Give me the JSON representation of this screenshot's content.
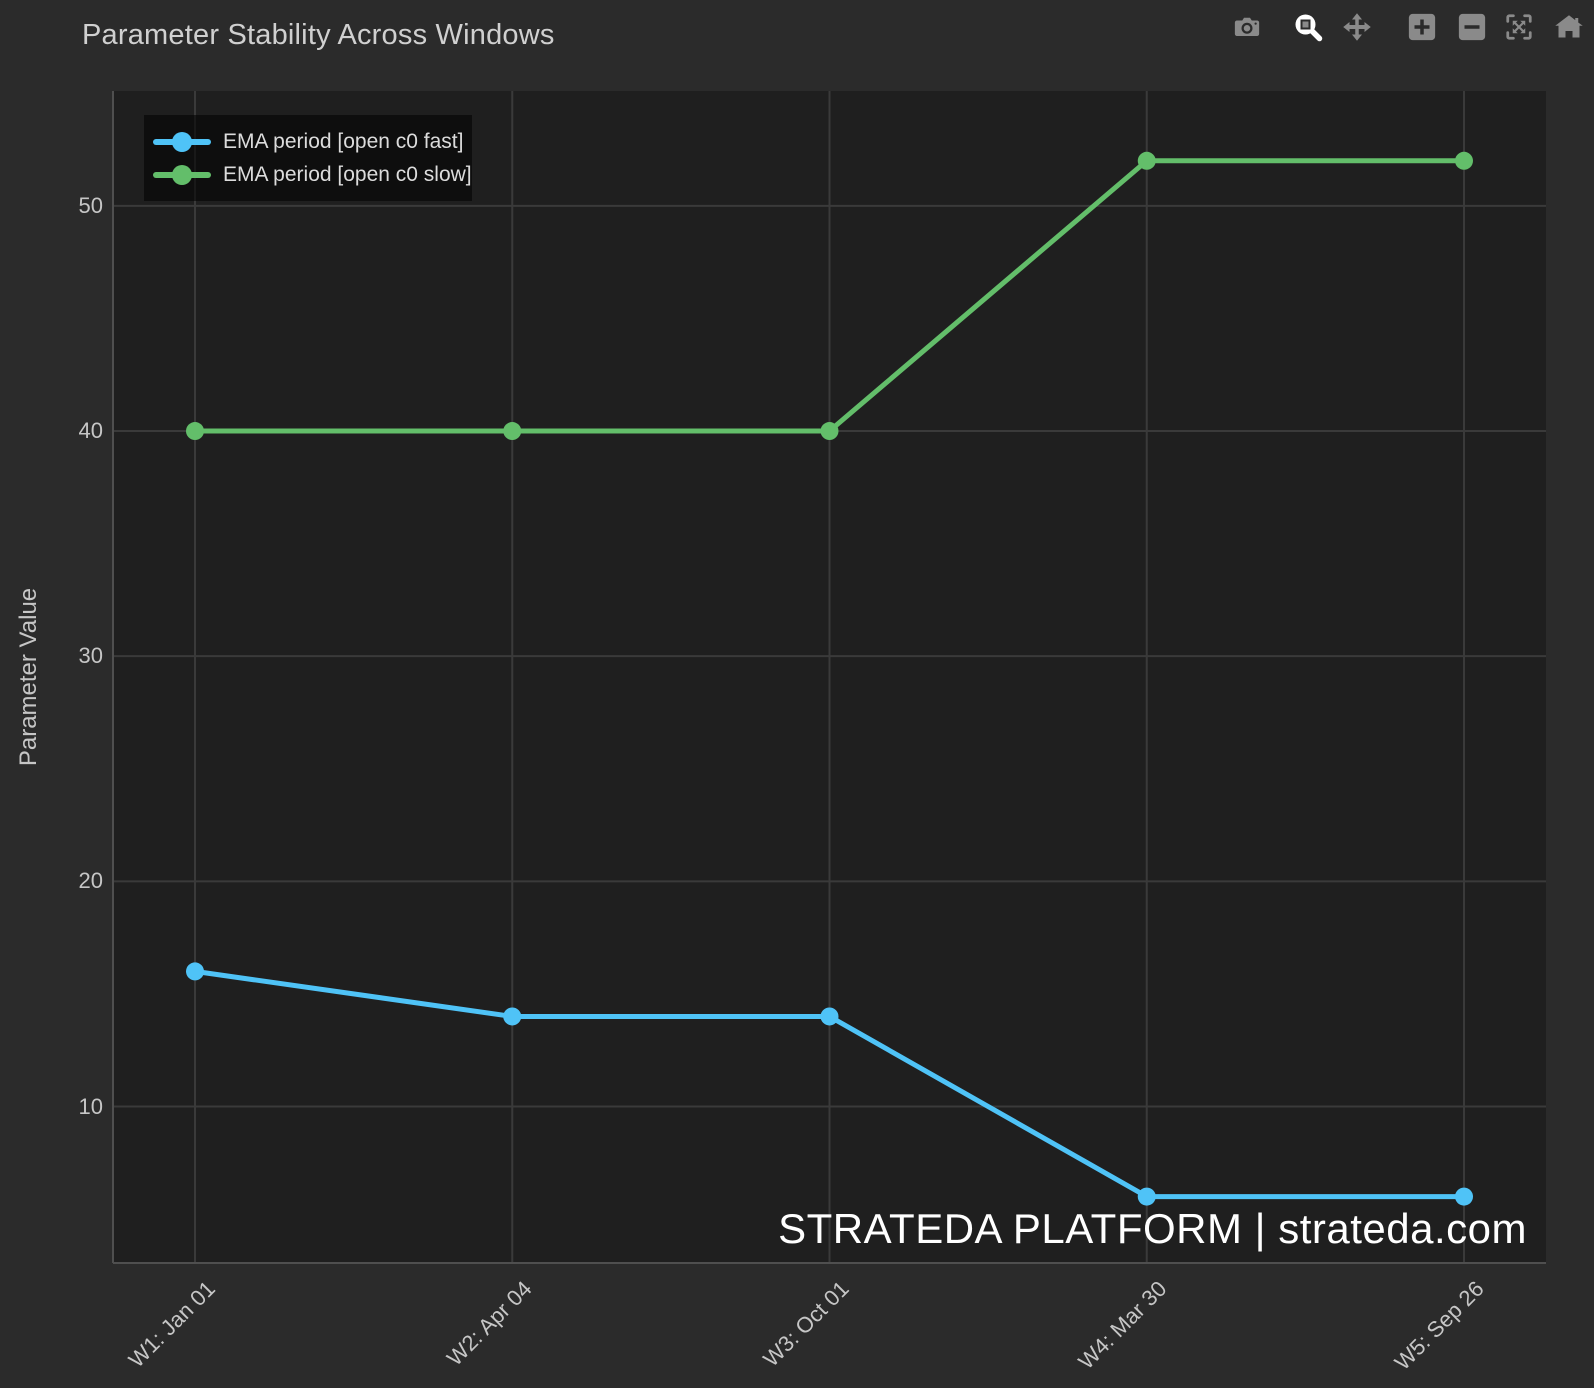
{
  "header": {
    "title": "Parameter Stability Across Windows"
  },
  "modebar": {
    "active_tool": "zoom",
    "icon_color": "#8a8a8a",
    "active_icon_color": "#ffffff",
    "buttons": [
      {
        "name": "camera-icon"
      },
      {
        "name": "zoom-icon"
      },
      {
        "name": "pan-icon"
      },
      {
        "name": "zoom-in-icon"
      },
      {
        "name": "zoom-out-icon"
      },
      {
        "name": "autoscale-icon"
      },
      {
        "name": "home-icon"
      }
    ]
  },
  "watermark": {
    "text": "STRATEDA PLATFORM | strateda.com"
  },
  "colors": {
    "page_bg": "#2b2b2b",
    "plot_bg": "#1f1f1f",
    "gridline": "#3a3a3a",
    "axis_line": "#4f4f4f",
    "tick_text": "#c6c6c6",
    "title_text": "#d0d0d0",
    "fast_series": "#4fc3f7",
    "slow_series": "#63be6a"
  },
  "chart_data": {
    "type": "line",
    "title": "Parameter Stability Across Windows",
    "xlabel": "",
    "ylabel": "Parameter Value",
    "categories": [
      "W1: Jan 01",
      "W2: Apr 04",
      "W3: Oct 01",
      "W4: Mar 30",
      "W5: Sep 26"
    ],
    "series": [
      {
        "name": "EMA period [open c0 fast]",
        "color": "#4fc3f7",
        "values": [
          16,
          14,
          14,
          6,
          6
        ]
      },
      {
        "name": "EMA period [open c0 slow]",
        "color": "#63be6a",
        "values": [
          40,
          40,
          40,
          52,
          52
        ]
      }
    ],
    "yticks": [
      10,
      20,
      30,
      40,
      50
    ],
    "ylim": [
      3.05,
      55.1
    ],
    "grid": true,
    "legend_position": "top-left",
    "marker_size": 9,
    "line_width": 5,
    "annotations": [
      "STRATEDA PLATFORM | strateda.com"
    ]
  }
}
